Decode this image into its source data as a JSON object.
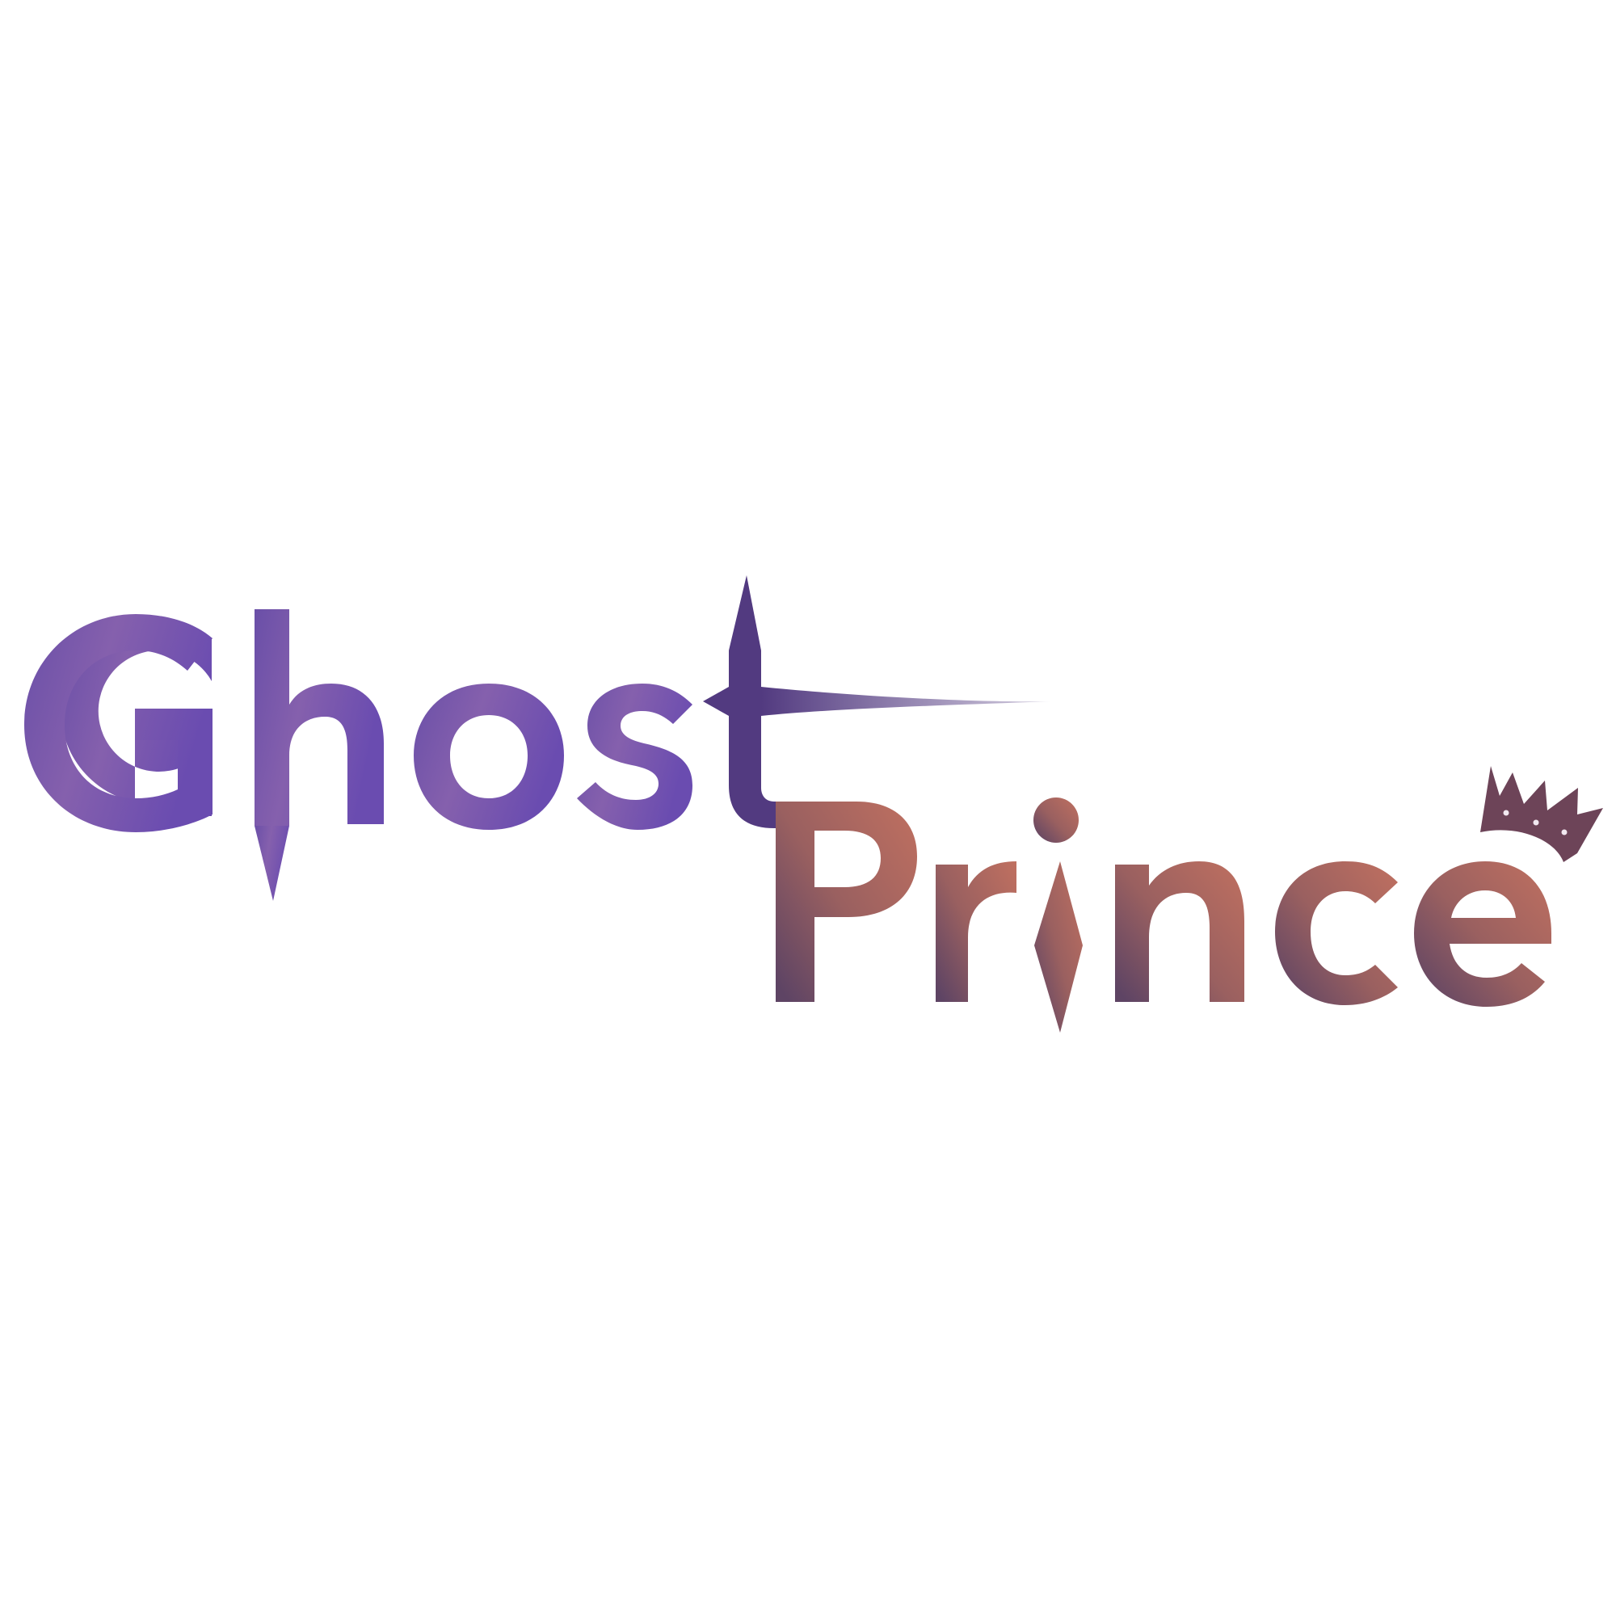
{
  "logo": {
    "word_1": "Ghost",
    "word_2": "Prince",
    "colors": {
      "ghost_start": "#6a4fa8",
      "ghost_mid": "#8560ad",
      "ghost_end": "#6a4cb0",
      "t_stroke": "#523a80",
      "prince_start": "#5e4464",
      "prince_mid": "#9a6060",
      "prince_end": "#c07060",
      "crown": "#6d4458",
      "crown_jewel": "#f2e8f0",
      "background": "#ffffff"
    },
    "icons": [
      "crown-icon",
      "spike-icon",
      "diamond-icon"
    ]
  }
}
